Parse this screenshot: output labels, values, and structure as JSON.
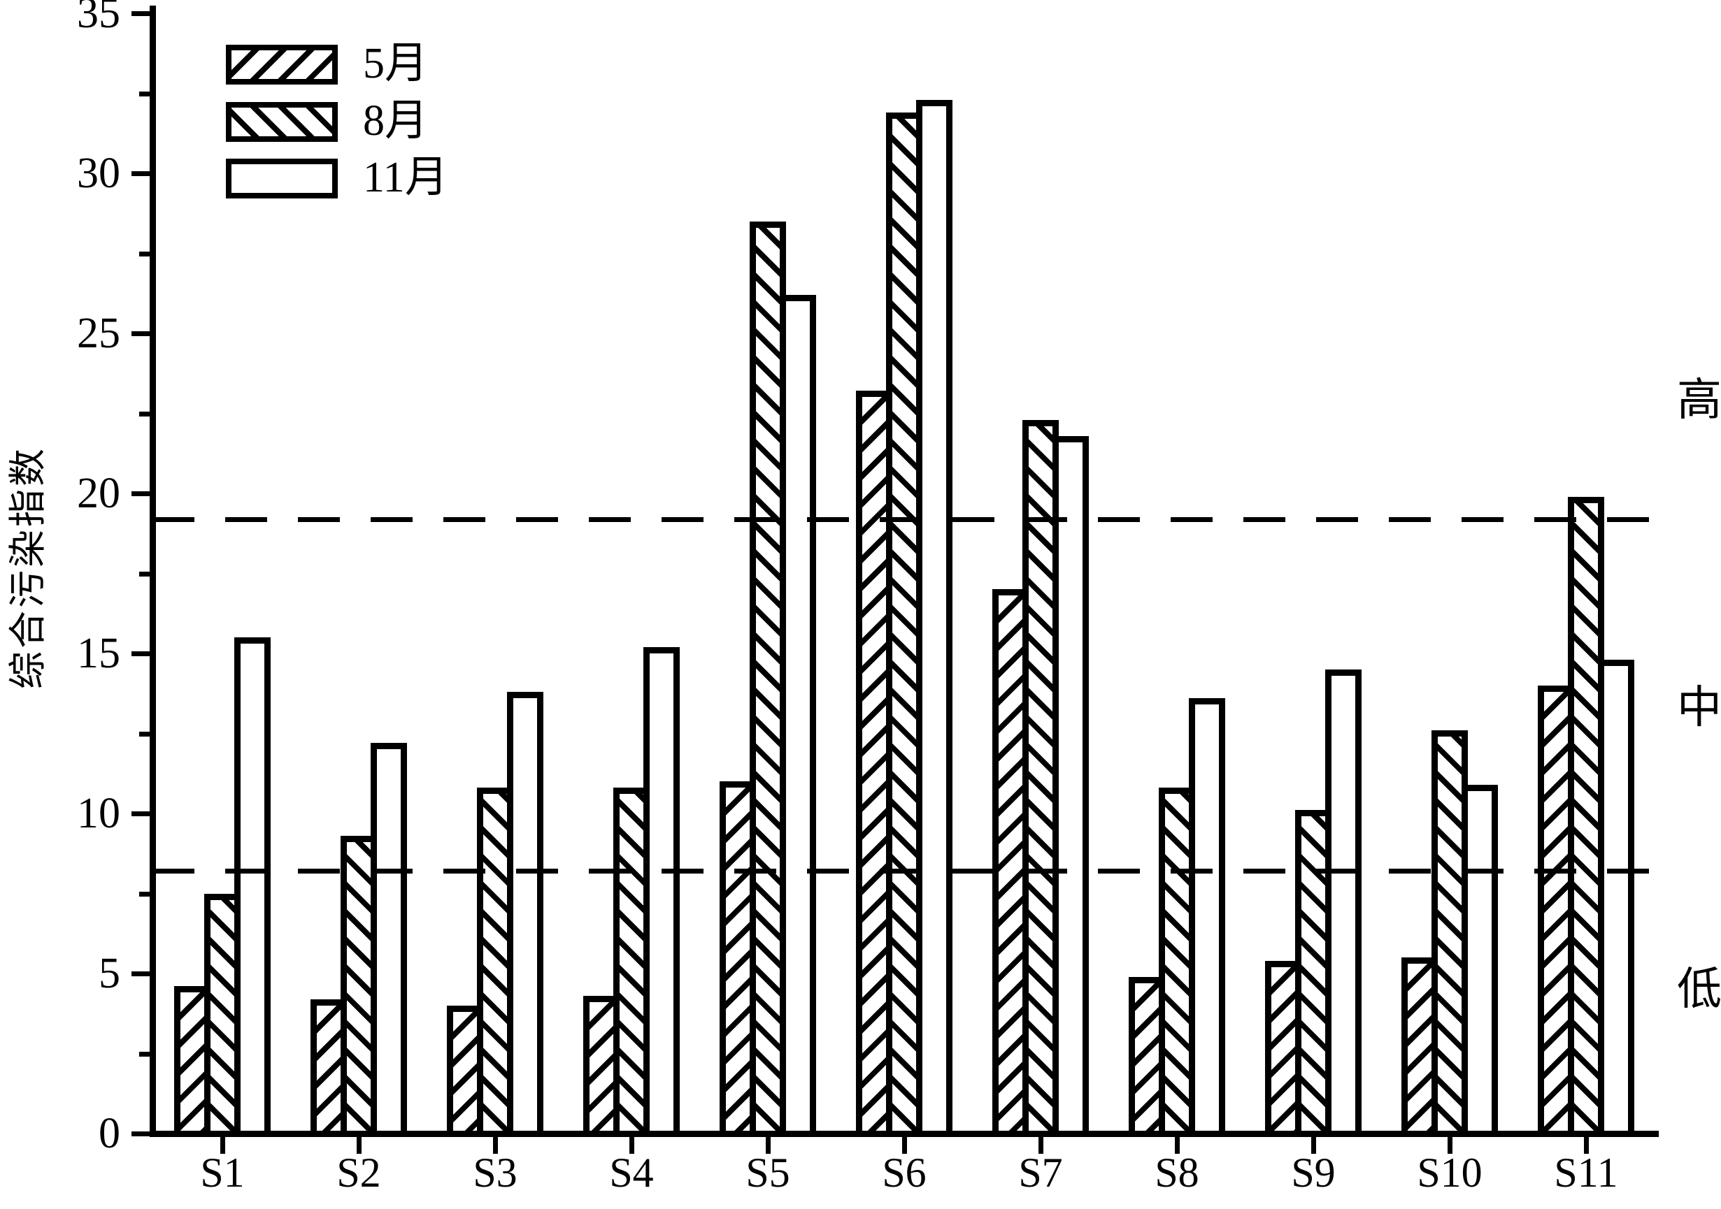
{
  "chart_data": {
    "type": "bar",
    "title": "",
    "ylabel": "综合污染指数",
    "xlabel": "",
    "categories": [
      "S1",
      "S2",
      "S3",
      "S4",
      "S5",
      "S6",
      "S7",
      "S8",
      "S9",
      "S10",
      "S11"
    ],
    "series": [
      {
        "name": "5月",
        "hatch": "forward-diagonal",
        "values": [
          4.6,
          4.2,
          4.0,
          4.3,
          11.0,
          23.2,
          17.0,
          4.9,
          5.4,
          5.5,
          14.0
        ]
      },
      {
        "name": "8月",
        "hatch": "backward-diagonal",
        "values": [
          7.5,
          9.3,
          10.8,
          10.8,
          28.5,
          31.9,
          22.3,
          10.8,
          10.1,
          12.6,
          19.9
        ]
      },
      {
        "name": "11月",
        "hatch": "none",
        "values": [
          15.5,
          12.2,
          13.8,
          15.2,
          26.2,
          32.3,
          21.8,
          13.6,
          14.5,
          10.9,
          14.8
        ]
      }
    ],
    "ylim": [
      0,
      35
    ],
    "ytick_step": 5,
    "yminor_step": 2.5,
    "grid": false,
    "legend_position": "top-left",
    "thresholds": [
      {
        "value": 19.2,
        "style": "dashed"
      },
      {
        "value": 8.2,
        "style": "dashed"
      }
    ],
    "zone_labels": [
      {
        "text": "高",
        "value": 22.9
      },
      {
        "text": "中",
        "value": 13.3
      },
      {
        "text": "低",
        "value": 4.5
      }
    ],
    "colors": {
      "foreground": "#000000",
      "background": "#ffffff"
    }
  }
}
